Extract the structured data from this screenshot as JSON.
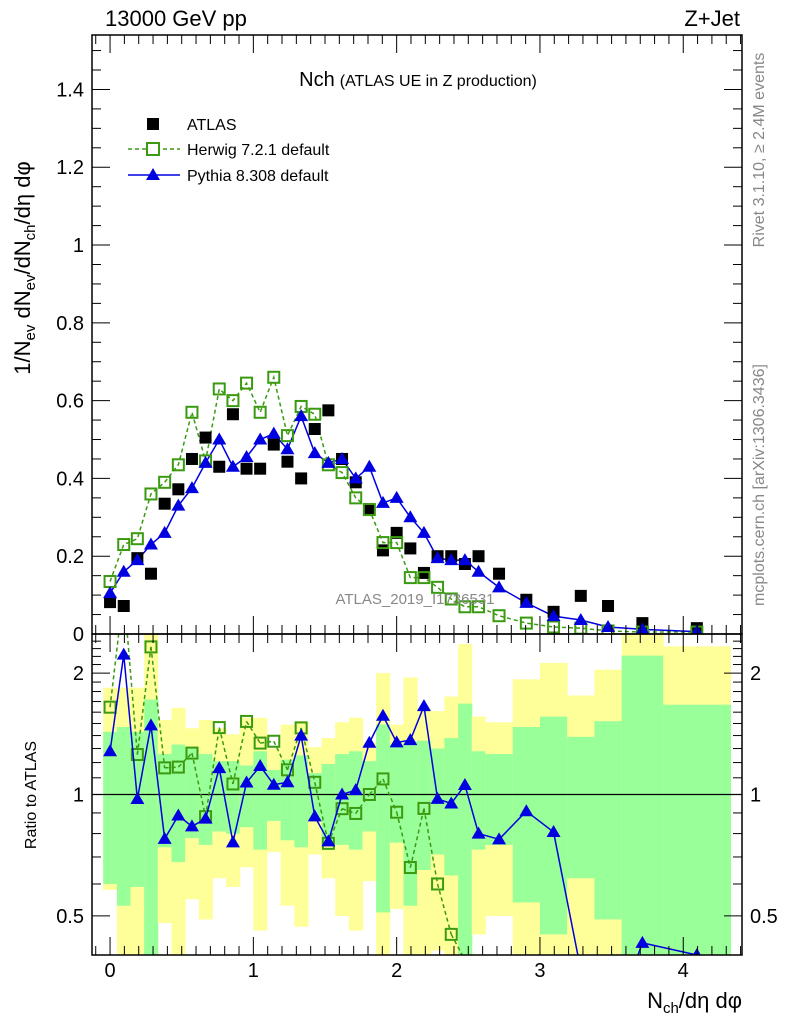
{
  "header": {
    "left": "13000 GeV pp",
    "right": "Z+Jet"
  },
  "side_labels": {
    "rivet": "Rivet 3.1.10, ≥ 2.4M events",
    "mcplots": "mcplots.cern.ch [arXiv:1306.3436]"
  },
  "watermark": "ATLAS_2019_I1736531",
  "colors": {
    "data": "#000000",
    "herwig": "#3a9a10",
    "pythia": "#0000e0",
    "band_stat": "#99ff99",
    "band_total": "#ffff99"
  },
  "chart_data": [
    {
      "type": "scatter",
      "panel": "main",
      "title_main": "Nch",
      "title_sub": "(ATLAS UE in Z production)",
      "ylabel_parts": [
        "1/N",
        "ev",
        " dN",
        "ev",
        "/dN",
        "ch",
        "/dη dφ"
      ],
      "ylim": [
        0,
        1.54
      ],
      "xlim": [
        -0.126,
        4.41
      ],
      "yticks": [
        0,
        0.2,
        0.4,
        0.6,
        0.8,
        1,
        1.2,
        1.4
      ],
      "ytick_labels": [
        "0",
        "0.2",
        "0.4",
        "0.6",
        "0.8",
        "1",
        "1.2",
        "1.4"
      ],
      "legend_position": "top-left",
      "bin_edges": [
        -0.048,
        0.048,
        0.143,
        0.238,
        0.333,
        0.429,
        0.524,
        0.619,
        0.714,
        0.81,
        0.905,
        1.0,
        1.095,
        1.19,
        1.286,
        1.381,
        1.476,
        1.571,
        1.667,
        1.762,
        1.857,
        1.952,
        2.048,
        2.143,
        2.238,
        2.333,
        2.429,
        2.524,
        2.619,
        2.81,
        3.0,
        3.19,
        3.38,
        3.57,
        3.86,
        4.33
      ],
      "series": [
        {
          "name": "ATLAS",
          "style": "data",
          "values": [
            0.082,
            0.072,
            0.195,
            0.155,
            0.335,
            0.372,
            0.45,
            0.505,
            0.43,
            0.565,
            0.425,
            0.425,
            0.487,
            0.443,
            0.4,
            0.527,
            0.575,
            0.45,
            0.39,
            0.32,
            0.215,
            0.26,
            0.22,
            0.157,
            0.2,
            0.2,
            0.18,
            0.2,
            0.155,
            0.088,
            0.057,
            0.098,
            0.072,
            0.028,
            0.015
          ]
        },
        {
          "name": "Herwig 7.2.1 default",
          "style": "herwig",
          "values": [
            0.135,
            0.23,
            0.245,
            0.36,
            0.39,
            0.435,
            0.57,
            0.445,
            0.63,
            0.6,
            0.645,
            0.57,
            0.66,
            0.51,
            0.585,
            0.565,
            0.435,
            0.415,
            0.35,
            0.32,
            0.235,
            0.235,
            0.145,
            0.145,
            0.12,
            0.09,
            0.07,
            0.07,
            0.047,
            0.028,
            0.018,
            0.015,
            0.008,
            0.005,
            0.005
          ]
        },
        {
          "name": "Pythia 8.308 default",
          "style": "pythia",
          "values": [
            0.105,
            0.16,
            0.19,
            0.23,
            0.26,
            0.33,
            0.375,
            0.44,
            0.5,
            0.43,
            0.455,
            0.5,
            0.515,
            0.475,
            0.56,
            0.465,
            0.44,
            0.45,
            0.4,
            0.43,
            0.337,
            0.35,
            0.3,
            0.26,
            0.195,
            0.19,
            0.19,
            0.16,
            0.12,
            0.08,
            0.046,
            0.036,
            0.018,
            0.012,
            0.006
          ]
        }
      ]
    },
    {
      "type": "scatter",
      "panel": "ratio",
      "ylabel": "Ratio to ATLAS",
      "xlabel_parts": [
        "N",
        "ch",
        "/dη dφ"
      ],
      "yscale": "log",
      "ylim": [
        0.4,
        2.5
      ],
      "yticks": [
        0.5,
        1,
        2
      ],
      "ytick_labels": [
        "0.5",
        "1",
        "2"
      ],
      "xticks": [
        0,
        1,
        2,
        3,
        4
      ],
      "xtick_labels": [
        "0",
        "1",
        "2",
        "3",
        "4"
      ],
      "ratio_definition": "MC / ATLAS",
      "bands": {
        "stat_low": [
          0.6,
          0.53,
          0.59,
          0.35,
          0.74,
          0.68,
          0.78,
          0.75,
          0.81,
          0.8,
          0.83,
          0.73,
          0.86,
          0.77,
          0.74,
          0.86,
          0.75,
          0.75,
          0.73,
          0.81,
          0.51,
          0.76,
          0.53,
          0.65,
          0.71,
          0.63,
          0.35,
          0.73,
          0.75,
          0.54,
          0.45,
          0.62,
          0.49,
          0.35,
          0.35
        ],
        "stat_high": [
          1.43,
          1.47,
          1.43,
          1.72,
          1.26,
          1.33,
          1.31,
          1.26,
          1.21,
          1.21,
          1.18,
          1.28,
          1.15,
          1.22,
          1.25,
          1.13,
          1.19,
          1.26,
          1.28,
          1.21,
          1.49,
          1.33,
          1.35,
          1.36,
          1.3,
          1.38,
          1.68,
          1.28,
          1.26,
          1.47,
          1.56,
          1.39,
          1.52,
          2.21,
          1.67
        ],
        "total_low": [
          0.58,
          0.35,
          0.35,
          0.35,
          0.48,
          0.35,
          0.55,
          0.49,
          0.62,
          0.59,
          0.66,
          0.46,
          0.72,
          0.53,
          0.47,
          0.71,
          0.62,
          0.5,
          0.46,
          0.61,
          0.35,
          0.52,
          0.35,
          0.35,
          0.41,
          0.35,
          0.35,
          0.45,
          0.5,
          0.35,
          0.35,
          0.35,
          0.35,
          0.35,
          0.35
        ],
        "total_high": [
          1.84,
          1.84,
          1.84,
          2.49,
          1.53,
          1.64,
          1.46,
          1.53,
          1.46,
          1.41,
          1.55,
          1.55,
          1.3,
          1.49,
          1.52,
          1.31,
          1.38,
          1.51,
          1.55,
          1.34,
          2.0,
          1.49,
          1.95,
          1.64,
          1.61,
          1.75,
          2.36,
          1.56,
          1.51,
          1.93,
          2.12,
          1.76,
          2.04,
          2.6,
          2.33
        ]
      }
    }
  ]
}
